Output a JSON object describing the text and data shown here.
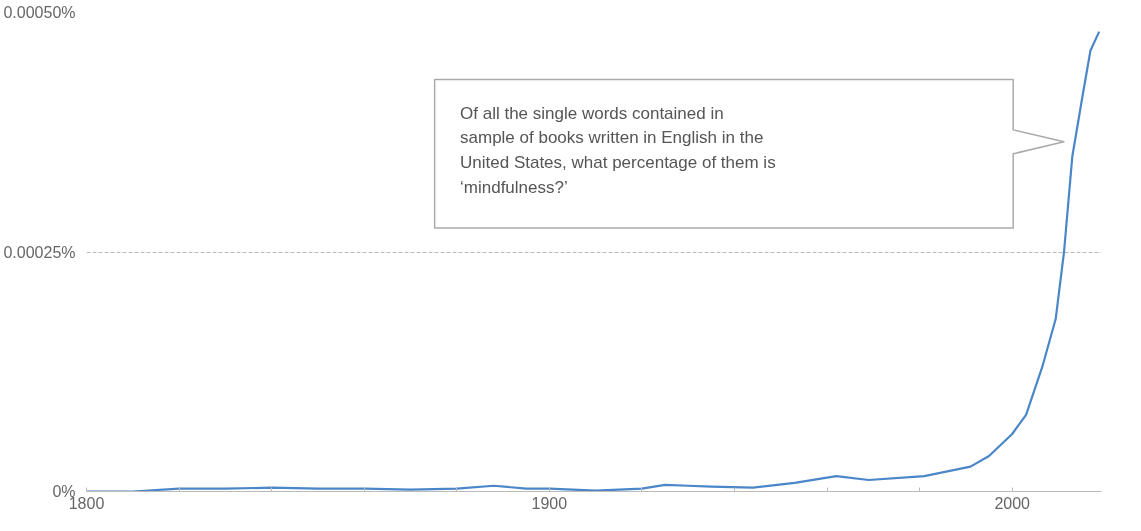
{
  "chart_data": {
    "type": "line",
    "x": [
      1800,
      1810,
      1820,
      1830,
      1840,
      1850,
      1860,
      1870,
      1880,
      1888,
      1895,
      1900,
      1910,
      1920,
      1925,
      1930,
      1935,
      1944,
      1953,
      1962,
      1969,
      1981,
      1991,
      1995,
      2000,
      2003,
      2006.5,
      2009.4,
      2011.2,
      2013,
      2015.1,
      2016.9,
      2018.8
    ],
    "series": [
      {
        "color": "#4a86c8",
        "values": [
          0,
          0,
          3e-06,
          3e-06,
          4e-06,
          3e-06,
          3e-06,
          2e-06,
          3e-06,
          6e-06,
          3e-06,
          3e-06,
          1e-06,
          3e-06,
          7e-06,
          6e-06,
          5e-06,
          4e-06,
          9e-06,
          1.6e-05,
          1.2e-05,
          1.6e-05,
          2.6e-05,
          3.7e-05,
          6e-05,
          8e-05,
          0.00013,
          0.00018,
          0.00025,
          0.00035,
          0.00041,
          0.00046,
          0.00048
        ]
      }
    ],
    "xlim": [
      1800,
      2019.3
    ],
    "xticks": [
      1800,
      {
        "value": 1820,
        "label": null
      },
      {
        "value": 1840,
        "label": null
      },
      {
        "value": 1860,
        "label": null
      },
      {
        "value": 1880,
        "label": null
      },
      1900,
      {
        "value": 1920,
        "label": null
      },
      {
        "value": 1940,
        "label": null
      },
      {
        "value": 1960,
        "label": null
      },
      {
        "value": 1980,
        "label": null
      },
      2000
    ],
    "ylim": [
      0,
      0.0005
    ],
    "yticks": [
      {
        "value": 0,
        "label": "0%"
      },
      {
        "value": 0.00025,
        "label": "0.00025%"
      },
      {
        "value": 0.0005,
        "label": "0.00050%"
      }
    ],
    "grid": "y",
    "line_style": "solid",
    "marker": "none",
    "annotations": [
      "Of all the single words contained in sample of books written in English in the United States, what percentage of them is ‘mindfulness?’"
    ]
  }
}
